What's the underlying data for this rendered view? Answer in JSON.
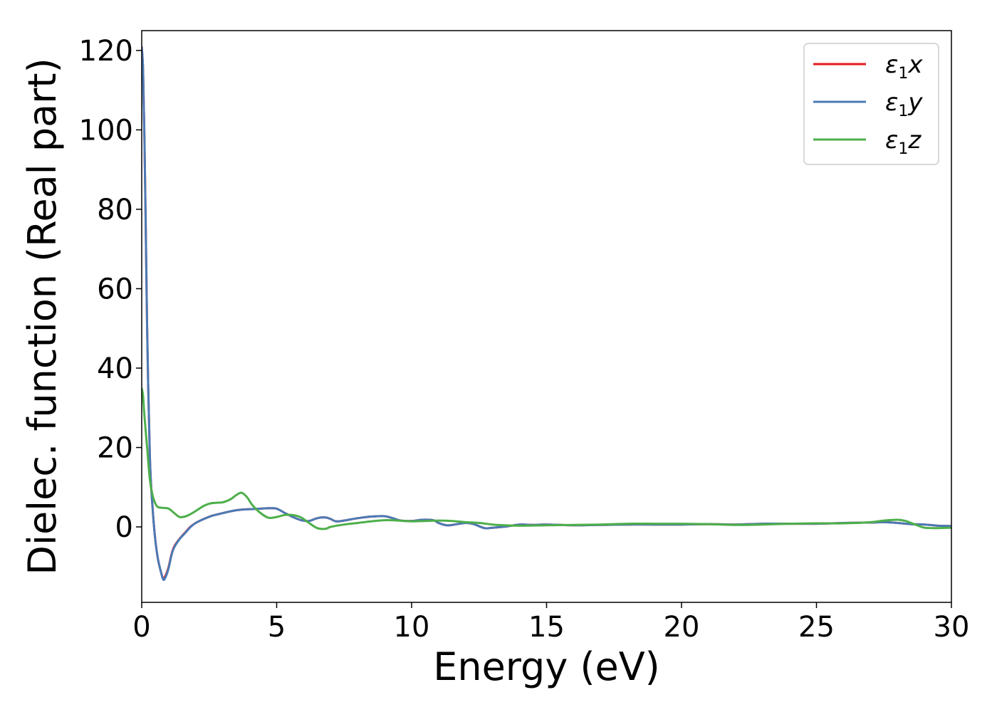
{
  "chart_data": {
    "type": "line",
    "xlabel": "Energy (eV)",
    "ylabel": "Dielec. function (Real part)",
    "xlim": [
      0,
      30
    ],
    "ylim": [
      -19,
      125
    ],
    "xticks": [
      0,
      5,
      10,
      15,
      20,
      25,
      30
    ],
    "yticks": [
      0,
      20,
      40,
      60,
      80,
      100,
      120
    ],
    "grid": false,
    "legend_position": "top-right",
    "series": [
      {
        "name": "ε1x",
        "legend_symbol": "ε",
        "legend_subscript": "1",
        "legend_suffix": "x",
        "color": "#e41a1c",
        "x": [
          0,
          0.05,
          0.1,
          0.15,
          0.2,
          0.3,
          0.4,
          0.5,
          0.6,
          0.7,
          0.8,
          0.9,
          1.0,
          1.1,
          1.2,
          1.4,
          1.6,
          1.8,
          2.0,
          2.3,
          2.6,
          2.9,
          3.2,
          3.5,
          3.8,
          4.1,
          4.4,
          4.7,
          5.0,
          5.3,
          5.6,
          5.9,
          6.2,
          6.5,
          6.8,
          7.0,
          7.2,
          7.5,
          8.0,
          8.5,
          9.0,
          9.3,
          9.6,
          10.0,
          10.4,
          10.8,
          11.0,
          11.3,
          11.6,
          12.0,
          12.3,
          12.7,
          13.0,
          13.5,
          14.0,
          14.5,
          15.0,
          16.0,
          17.0,
          18.0,
          19.0,
          20.0,
          21.0,
          22.0,
          23.0,
          24.0,
          25.0,
          26.0,
          27.0,
          27.5,
          28.0,
          28.5,
          29.0,
          29.5,
          30.0
        ],
        "y": [
          121,
          115,
          98,
          75,
          50,
          18,
          5,
          -3,
          -8,
          -11,
          -13,
          -12,
          -10,
          -7,
          -5,
          -3,
          -1.5,
          0,
          1,
          2,
          2.8,
          3.3,
          3.8,
          4.2,
          4.4,
          4.5,
          4.6,
          4.7,
          4.6,
          3.5,
          2.5,
          1.7,
          1.5,
          2.2,
          2.4,
          2.0,
          1.4,
          1.6,
          2.2,
          2.6,
          2.7,
          2.2,
          1.6,
          1.5,
          1.8,
          1.7,
          1.0,
          0.4,
          0.6,
          1.0,
          0.7,
          -0.3,
          -0.2,
          0.1,
          0.6,
          0.5,
          0.6,
          0.4,
          0.5,
          0.6,
          0.6,
          0.6,
          0.7,
          0.6,
          0.8,
          0.8,
          0.8,
          1.0,
          1.1,
          1.2,
          1.0,
          0.7,
          0.6,
          0.3,
          0.2
        ]
      },
      {
        "name": "ε1y",
        "legend_symbol": "ε",
        "legend_subscript": "1",
        "legend_suffix": "y",
        "color": "#4a7ab5",
        "x": [
          0,
          0.05,
          0.1,
          0.15,
          0.2,
          0.3,
          0.4,
          0.5,
          0.6,
          0.7,
          0.8,
          0.9,
          1.0,
          1.1,
          1.2,
          1.4,
          1.6,
          1.8,
          2.0,
          2.3,
          2.6,
          2.9,
          3.2,
          3.5,
          3.8,
          4.1,
          4.4,
          4.7,
          5.0,
          5.3,
          5.6,
          5.9,
          6.2,
          6.5,
          6.8,
          7.0,
          7.2,
          7.5,
          8.0,
          8.5,
          9.0,
          9.3,
          9.6,
          10.0,
          10.4,
          10.8,
          11.0,
          11.3,
          11.6,
          12.0,
          12.3,
          12.7,
          13.0,
          13.5,
          14.0,
          14.5,
          15.0,
          16.0,
          17.0,
          18.0,
          19.0,
          20.0,
          21.0,
          22.0,
          23.0,
          24.0,
          25.0,
          26.0,
          27.0,
          27.5,
          28.0,
          28.5,
          29.0,
          29.5,
          30.0
        ],
        "y": [
          121,
          115,
          98,
          75,
          50,
          18,
          5,
          -3,
          -8,
          -11,
          -13.3,
          -12.4,
          -10.3,
          -7.2,
          -5.2,
          -3.1,
          -1.6,
          -0.1,
          1,
          2,
          2.8,
          3.3,
          3.8,
          4.2,
          4.4,
          4.5,
          4.6,
          4.7,
          4.6,
          3.5,
          2.5,
          1.7,
          1.5,
          2.2,
          2.4,
          2.0,
          1.4,
          1.6,
          2.2,
          2.6,
          2.7,
          2.2,
          1.6,
          1.5,
          1.8,
          1.7,
          1.0,
          0.4,
          0.6,
          1.0,
          0.7,
          -0.3,
          -0.2,
          0.1,
          0.6,
          0.5,
          0.6,
          0.4,
          0.5,
          0.6,
          0.6,
          0.6,
          0.7,
          0.6,
          0.8,
          0.8,
          0.8,
          1.0,
          1.1,
          1.2,
          1.0,
          0.7,
          0.6,
          0.3,
          0.2
        ]
      },
      {
        "name": "ε1z",
        "legend_symbol": "ε",
        "legend_subscript": "1",
        "legend_suffix": "z",
        "color": "#4daf4a",
        "x": [
          0,
          0.05,
          0.1,
          0.2,
          0.3,
          0.4,
          0.5,
          0.6,
          0.8,
          1.0,
          1.2,
          1.4,
          1.6,
          1.8,
          2.0,
          2.3,
          2.6,
          3.0,
          3.3,
          3.5,
          3.7,
          3.9,
          4.1,
          4.4,
          4.7,
          5.0,
          5.3,
          5.6,
          5.9,
          6.2,
          6.5,
          6.8,
          7.0,
          7.5,
          8.0,
          8.5,
          9.0,
          9.5,
          10.0,
          10.5,
          11.0,
          11.5,
          12.0,
          12.5,
          13.0,
          13.5,
          14.0,
          15.0,
          16.0,
          17.0,
          18.0,
          19.0,
          20.0,
          21.0,
          22.0,
          23.0,
          24.0,
          25.0,
          26.0,
          27.0,
          27.5,
          28.0,
          28.3,
          28.7,
          29.0,
          29.5,
          30.0
        ],
        "y": [
          35,
          33,
          28,
          20,
          12,
          8,
          6,
          5,
          4.8,
          4.6,
          3.5,
          2.5,
          2.6,
          3.2,
          4,
          5.3,
          6.0,
          6.2,
          7.0,
          8.0,
          8.6,
          7.5,
          5.5,
          3.5,
          2.3,
          2.5,
          3.0,
          3.0,
          2.4,
          1.0,
          -0.3,
          -0.5,
          0,
          0.6,
          1.0,
          1.4,
          1.7,
          1.6,
          1.4,
          1.5,
          1.6,
          1.5,
          1.2,
          1.0,
          0.6,
          0.4,
          0.3,
          0.4,
          0.5,
          0.6,
          0.8,
          0.8,
          0.8,
          0.7,
          0.5,
          0.6,
          0.8,
          0.9,
          0.9,
          1.2,
          1.6,
          1.8,
          1.5,
          0.5,
          -0.2,
          -0.3,
          -0.2
        ]
      }
    ]
  }
}
